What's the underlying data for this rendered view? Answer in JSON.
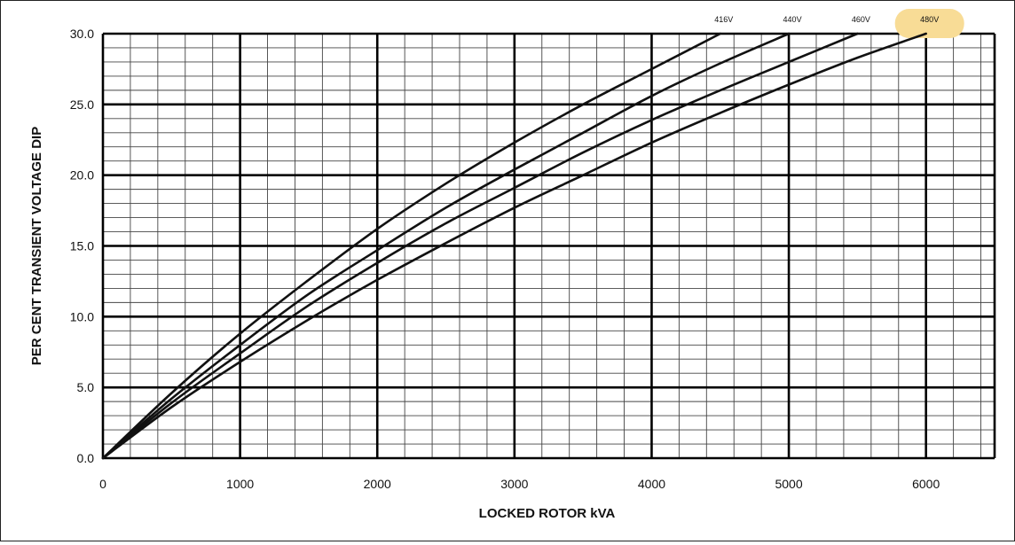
{
  "chart_data": {
    "type": "line",
    "xlabel": "LOCKED ROTOR kVA",
    "ylabel": "PER CENT TRANSIENT VOLTAGE DIP",
    "xlim": [
      0,
      6500
    ],
    "ylim": [
      0,
      30
    ],
    "x_ticks": [
      "0",
      "1000",
      "2000",
      "3000",
      "4000",
      "5000",
      "6000"
    ],
    "y_ticks": [
      "0.0",
      "5.0",
      "10.0",
      "15.0",
      "20.0",
      "25.0",
      "30.0"
    ],
    "grid": true,
    "highlight_color": "#f8dc96",
    "series": [
      {
        "name": "416V",
        "points": [
          [
            0,
            0
          ],
          [
            500,
            4.6
          ],
          [
            1000,
            8.8
          ],
          [
            1500,
            12.6
          ],
          [
            2000,
            16.2
          ],
          [
            2500,
            19.4
          ],
          [
            3000,
            22.3
          ],
          [
            3500,
            25.0
          ],
          [
            4000,
            27.5
          ],
          [
            4500,
            30.0
          ]
        ]
      },
      {
        "name": "440V",
        "points": [
          [
            0,
            0
          ],
          [
            500,
            4.2
          ],
          [
            1000,
            8.0
          ],
          [
            1500,
            11.6
          ],
          [
            2000,
            14.7
          ],
          [
            2500,
            17.7
          ],
          [
            3000,
            20.4
          ],
          [
            3500,
            23.0
          ],
          [
            4000,
            25.6
          ],
          [
            4500,
            27.9
          ],
          [
            5000,
            30.0
          ]
        ]
      },
      {
        "name": "460V",
        "points": [
          [
            0,
            0
          ],
          [
            500,
            3.9
          ],
          [
            1000,
            7.4
          ],
          [
            1500,
            10.8
          ],
          [
            2000,
            13.8
          ],
          [
            2500,
            16.6
          ],
          [
            3000,
            19.1
          ],
          [
            3500,
            21.6
          ],
          [
            4000,
            23.9
          ],
          [
            4500,
            26.0
          ],
          [
            5000,
            28.0
          ],
          [
            5500,
            30.0
          ]
        ]
      },
      {
        "name": "480V",
        "highlighted": true,
        "points": [
          [
            0,
            0
          ],
          [
            500,
            3.6
          ],
          [
            1000,
            6.8
          ],
          [
            1500,
            9.8
          ],
          [
            2000,
            12.6
          ],
          [
            2500,
            15.2
          ],
          [
            3000,
            17.7
          ],
          [
            3500,
            20.0
          ],
          [
            4000,
            22.3
          ],
          [
            4500,
            24.4
          ],
          [
            5000,
            26.4
          ],
          [
            5500,
            28.3
          ],
          [
            6000,
            30.0
          ]
        ]
      }
    ]
  }
}
